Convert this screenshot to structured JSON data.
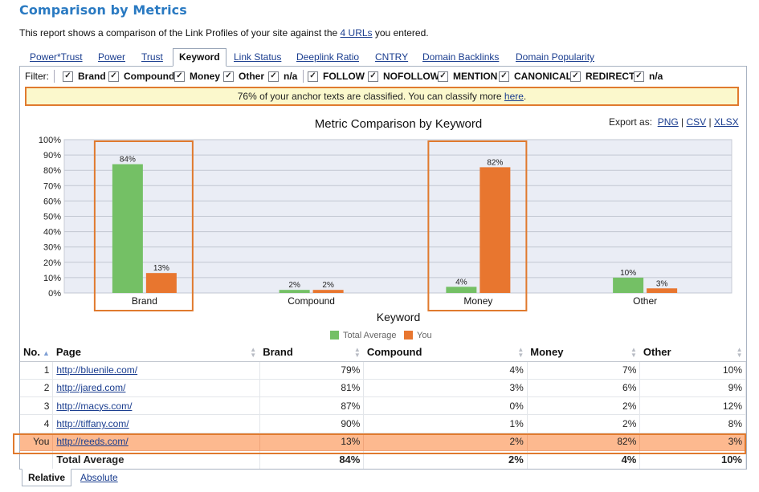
{
  "page": {
    "title": "Comparison by Metrics",
    "subtitle_before": "This report shows a comparison of the Link Profiles of your site against the ",
    "subtitle_link": "4 URLs",
    "subtitle_after": " you entered."
  },
  "tabs": [
    {
      "label": "Power*Trust",
      "active": false
    },
    {
      "label": "Power",
      "active": false
    },
    {
      "label": "Trust",
      "active": false
    },
    {
      "label": "Keyword",
      "active": true
    },
    {
      "label": "Link Status",
      "active": false
    },
    {
      "label": "Deeplink Ratio",
      "active": false
    },
    {
      "label": "CNTRY",
      "active": false
    },
    {
      "label": "Domain Backlinks",
      "active": false
    },
    {
      "label": "Domain Popularity",
      "active": false
    }
  ],
  "filter": {
    "label": "Filter:",
    "group1": [
      {
        "label": "Brand",
        "checked": true
      },
      {
        "label": "Compound",
        "checked": true
      },
      {
        "label": "Money",
        "checked": true
      },
      {
        "label": "Other",
        "checked": true
      },
      {
        "label": "n/a",
        "checked": true
      }
    ],
    "group2": [
      {
        "label": "FOLLOW",
        "checked": true
      },
      {
        "label": "NOFOLLOW",
        "checked": true
      },
      {
        "label": "MENTION",
        "checked": true
      },
      {
        "label": "CANONICAL",
        "checked": true
      },
      {
        "label": "REDIRECT",
        "checked": true
      },
      {
        "label": "n/a",
        "checked": true
      }
    ],
    "check_glyph": "✓"
  },
  "notice": {
    "text": "76% of your anchor texts are classified. You can classify more ",
    "link": "here",
    "end": "."
  },
  "export": {
    "label": "Export as:",
    "formats": [
      "PNG",
      "CSV",
      "XLSX"
    ]
  },
  "chart_data": {
    "type": "bar",
    "title": "Metric Comparison by Keyword",
    "xlabel": "Keyword",
    "ylabel": "",
    "categories": [
      "Brand",
      "Compound",
      "Money",
      "Other"
    ],
    "series": [
      {
        "name": "Total Average",
        "values": [
          84,
          2,
          4,
          10
        ],
        "color": "#74c065"
      },
      {
        "name": "You",
        "values": [
          13,
          2,
          82,
          3
        ],
        "color": "#e8762f"
      }
    ],
    "ylim": [
      0,
      100
    ],
    "yticks": [
      "0%",
      "10%",
      "20%",
      "30%",
      "40%",
      "50%",
      "60%",
      "70%",
      "80%",
      "90%",
      "100%"
    ],
    "value_suffix": "%",
    "grid": true,
    "legend_position": "bottom-center",
    "highlighted_categories": [
      "Brand",
      "Money"
    ],
    "plot_background": "#eaedf5",
    "highlight_color": "#e07a2e"
  },
  "table": {
    "headers": [
      "No.",
      "Page",
      "Brand",
      "Compound",
      "Money",
      "Other"
    ],
    "rows": [
      {
        "no": "1",
        "page": "http://bluenile.com/",
        "brand": "79%",
        "compound": "4%",
        "money": "7%",
        "other": "10%"
      },
      {
        "no": "2",
        "page": "http://jared.com/",
        "brand": "81%",
        "compound": "3%",
        "money": "6%",
        "other": "9%"
      },
      {
        "no": "3",
        "page": "http://macys.com/",
        "brand": "87%",
        "compound": "0%",
        "money": "2%",
        "other": "12%"
      },
      {
        "no": "4",
        "page": "http://tiffany.com/",
        "brand": "90%",
        "compound": "1%",
        "money": "2%",
        "other": "8%"
      },
      {
        "no": "You",
        "page": "http://reeds.com/",
        "brand": "13%",
        "compound": "2%",
        "money": "82%",
        "other": "3%",
        "highlight": true
      }
    ],
    "total": {
      "label": "Total Average",
      "brand": "84%",
      "compound": "2%",
      "money": "4%",
      "other": "10%"
    }
  },
  "bottom_tabs": [
    {
      "label": "Relative",
      "active": true
    },
    {
      "label": "Absolute",
      "active": false
    }
  ],
  "colors": {
    "title": "#2a7ac2",
    "link": "#1a3d8f",
    "highlight_row": "#fdb98f",
    "outline": "#e07a2e",
    "notice_bg": "#fbf8cc"
  }
}
